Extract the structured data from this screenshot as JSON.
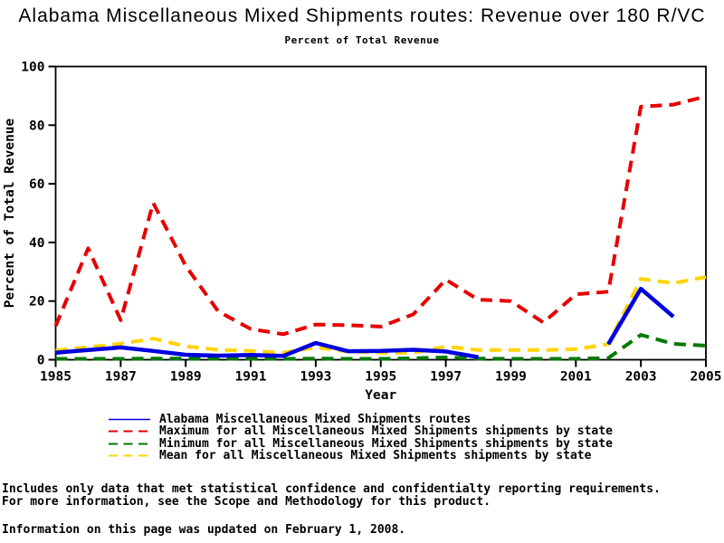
{
  "page": {
    "background": "#ffffff",
    "axis_color": "#000000"
  },
  "chart_data": {
    "type": "line",
    "title": "Alabama Miscellaneous Mixed Shipments routes: Revenue over 180 R/VC",
    "subtitle": "Percent of Total Revenue",
    "xlabel": "Year",
    "ylabel": "Percent of Total Revenue",
    "xlim": [
      1985,
      2005
    ],
    "ylim": [
      0,
      100
    ],
    "x_ticks": [
      1985,
      1987,
      1989,
      1991,
      1993,
      1995,
      1997,
      1999,
      2001,
      2003,
      2005
    ],
    "y_ticks": [
      0,
      20,
      40,
      60,
      80,
      100
    ],
    "grid": false,
    "legend_position": "bottom-left",
    "x": [
      1985,
      1986,
      1987,
      1988,
      1989,
      1990,
      1991,
      1992,
      1993,
      1994,
      1995,
      1996,
      1997,
      1998,
      1999,
      2000,
      2001,
      2002,
      2003,
      2004,
      2005
    ],
    "series": [
      {
        "name": "Alabama Miscellaneous Mixed Shipments routes",
        "color": "#0000dd",
        "style": "solid",
        "values": [
          2.4,
          3.3,
          4.2,
          3.0,
          1.7,
          1.4,
          1.6,
          1.3,
          5.7,
          2.9,
          3.0,
          3.4,
          2.8,
          0.9,
          null,
          null,
          null,
          5.3,
          24.2,
          14.7,
          null
        ]
      },
      {
        "name": "Maximum for all Miscellaneous Mixed Shipments shipments by state",
        "color": "#e60000",
        "style": "dashed",
        "values": [
          11.5,
          38.0,
          13.5,
          53.5,
          32.0,
          16.5,
          10.5,
          8.7,
          12.0,
          11.8,
          11.3,
          15.5,
          27.3,
          20.5,
          20.0,
          12.7,
          22.3,
          23.2,
          86.3,
          87.0,
          89.8
        ]
      },
      {
        "name": "Minimum for all Miscellaneous Mixed Shipments shipments by state",
        "color": "#007a00",
        "style": "dashed",
        "values": [
          0.3,
          0.3,
          0.3,
          0.4,
          0.4,
          0.3,
          0.3,
          0.3,
          0.4,
          0.3,
          0.3,
          0.5,
          0.8,
          0.4,
          0.3,
          0.3,
          0.3,
          0.6,
          8.5,
          5.4,
          4.8
        ]
      },
      {
        "name": "Mean for all Miscellaneous Mixed Shipments shipments by state",
        "color": "#ffd400",
        "style": "dashed",
        "values": [
          3.2,
          4.3,
          5.5,
          7.2,
          4.6,
          3.4,
          3.0,
          2.4,
          4.2,
          2.8,
          2.4,
          2.4,
          4.5,
          3.3,
          3.3,
          3.3,
          3.6,
          5.3,
          27.6,
          26.1,
          28.2
        ]
      }
    ]
  },
  "footnotes": {
    "line1": "Includes only data that met statistical confidence and confidentialty reporting requirements.",
    "line2": "For more information, see the Scope and Methodology for this product.",
    "line3": "Information on this page was updated on February 1, 2008."
  }
}
